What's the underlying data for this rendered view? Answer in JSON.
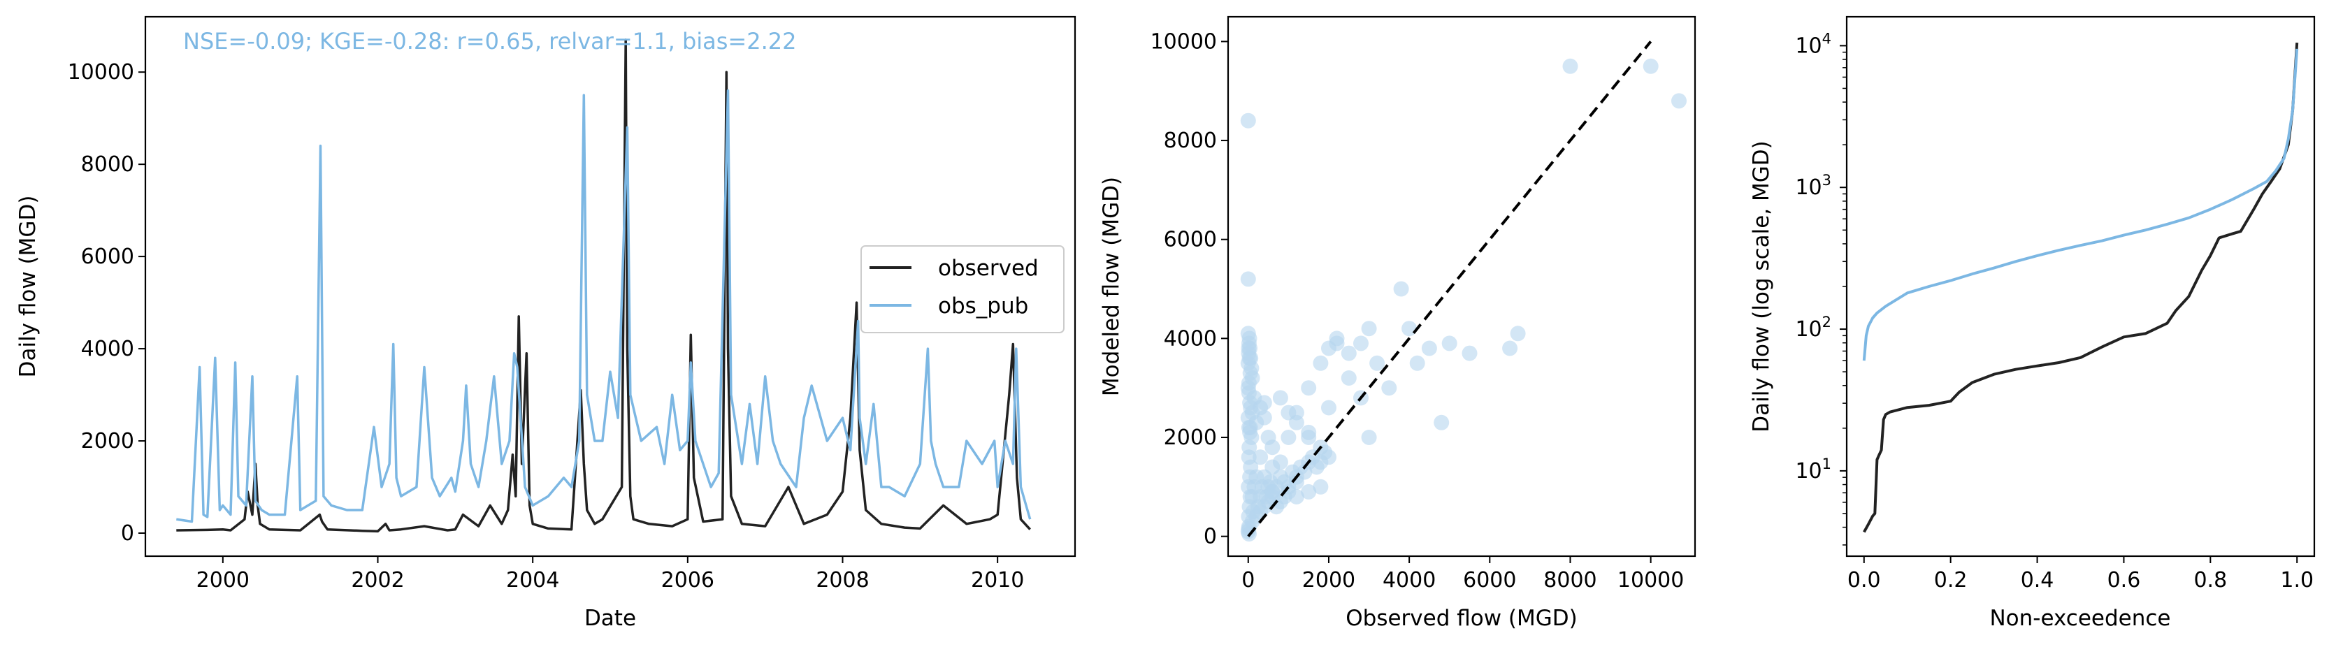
{
  "colors": {
    "observed": "#222222",
    "obs_pub": "#7cb7e3",
    "scatter": "#b6d6ef",
    "diagonal": "#000000",
    "metrics": "#7cb7e3"
  },
  "chart_data": [
    {
      "id": "timeseries",
      "type": "line",
      "annotation": "NSE=-0.09; KGE=-0.28: r=0.65, relvar=1.1, bias=2.22",
      "xlabel": "Date",
      "ylabel": "Daily flow (MGD)",
      "xlim": [
        1999.0,
        2011.0
      ],
      "ylim": [
        -500,
        11200
      ],
      "x_ticks": [
        2000,
        2002,
        2004,
        2006,
        2008,
        2010
      ],
      "y_ticks": [
        0,
        2000,
        4000,
        6000,
        8000,
        10000
      ],
      "legend": {
        "position": "center-right",
        "entries": [
          "observed",
          "obs_pub"
        ]
      },
      "series": [
        {
          "name": "observed",
          "x": [
            1999.4,
            1999.8,
            2000.0,
            2000.1,
            2000.28,
            2000.32,
            2000.38,
            2000.42,
            2000.45,
            2000.48,
            2000.6,
            2001.0,
            2001.25,
            2001.28,
            2001.35,
            2001.8,
            2002.0,
            2002.1,
            2002.15,
            2002.3,
            2002.6,
            2002.9,
            2003.0,
            2003.1,
            2003.3,
            2003.45,
            2003.6,
            2003.68,
            2003.74,
            2003.78,
            2003.82,
            2003.86,
            2003.92,
            2003.96,
            2004.0,
            2004.2,
            2004.5,
            2004.62,
            2004.66,
            2004.7,
            2004.8,
            2004.9,
            2005.15,
            2005.2,
            2005.22,
            2005.26,
            2005.3,
            2005.5,
            2005.8,
            2006.0,
            2006.04,
            2006.08,
            2006.2,
            2006.45,
            2006.5,
            2006.52,
            2006.56,
            2006.7,
            2007.0,
            2007.3,
            2007.5,
            2007.8,
            2008.0,
            2008.1,
            2008.18,
            2008.22,
            2008.3,
            2008.5,
            2008.8,
            2009.0,
            2009.3,
            2009.6,
            2009.9,
            2010.0,
            2010.15,
            2010.2,
            2010.25,
            2010.3,
            2010.42
          ],
          "values": [
            60,
            70,
            80,
            60,
            300,
            900,
            400,
            1500,
            600,
            200,
            80,
            60,
            400,
            250,
            80,
            50,
            40,
            200,
            60,
            80,
            150,
            60,
            80,
            400,
            150,
            600,
            200,
            500,
            1700,
            800,
            4700,
            1500,
            3900,
            600,
            200,
            100,
            80,
            3100,
            1500,
            500,
            200,
            300,
            1000,
            10700,
            4000,
            800,
            300,
            200,
            150,
            300,
            4300,
            1200,
            250,
            300,
            10000,
            4000,
            800,
            200,
            150,
            1000,
            200,
            400,
            900,
            2500,
            5000,
            1800,
            500,
            200,
            120,
            100,
            600,
            200,
            300,
            400,
            3000,
            4100,
            1200,
            300,
            80
          ]
        },
        {
          "name": "obs_pub",
          "x": [
            1999.4,
            1999.6,
            1999.7,
            1999.75,
            1999.8,
            1999.9,
            1999.96,
            2000.0,
            2000.1,
            2000.16,
            2000.2,
            2000.3,
            2000.38,
            2000.42,
            2000.5,
            2000.6,
            2000.8,
            2000.96,
            2001.0,
            2001.1,
            2001.2,
            2001.26,
            2001.3,
            2001.4,
            2001.6,
            2001.8,
            2001.95,
            2002.05,
            2002.15,
            2002.2,
            2002.24,
            2002.3,
            2002.5,
            2002.6,
            2002.7,
            2002.8,
            2002.95,
            2003.0,
            2003.1,
            2003.14,
            2003.2,
            2003.3,
            2003.4,
            2003.5,
            2003.6,
            2003.7,
            2003.76,
            2003.8,
            2003.9,
            2004.0,
            2004.2,
            2004.4,
            2004.5,
            2004.6,
            2004.66,
            2004.7,
            2004.8,
            2004.9,
            2005.0,
            2005.1,
            2005.22,
            2005.26,
            2005.4,
            2005.6,
            2005.7,
            2005.8,
            2005.9,
            2006.0,
            2006.04,
            2006.1,
            2006.2,
            2006.3,
            2006.4,
            2006.52,
            2006.56,
            2006.7,
            2006.8,
            2006.9,
            2007.0,
            2007.1,
            2007.2,
            2007.4,
            2007.5,
            2007.6,
            2007.8,
            2008.0,
            2008.1,
            2008.2,
            2008.22,
            2008.3,
            2008.4,
            2008.5,
            2008.6,
            2008.8,
            2009.0,
            2009.1,
            2009.14,
            2009.2,
            2009.3,
            2009.5,
            2009.6,
            2009.8,
            2009.96,
            2010.0,
            2010.1,
            2010.2,
            2010.24,
            2010.3,
            2010.42
          ],
          "values": [
            300,
            250,
            3600,
            400,
            350,
            3800,
            500,
            600,
            400,
            3700,
            800,
            600,
            3400,
            700,
            500,
            400,
            400,
            3400,
            500,
            600,
            700,
            8400,
            800,
            600,
            500,
            500,
            2300,
            1000,
            1500,
            4100,
            1200,
            800,
            1000,
            3600,
            1200,
            800,
            1200,
            900,
            2000,
            3200,
            1500,
            1000,
            2000,
            3400,
            1500,
            2000,
            3900,
            3600,
            1000,
            600,
            800,
            1200,
            1000,
            2000,
            9500,
            3000,
            2000,
            2000,
            3500,
            2500,
            8800,
            3000,
            2000,
            2300,
            1500,
            3000,
            1800,
            2000,
            3700,
            2000,
            1500,
            1000,
            1300,
            9600,
            3000,
            1500,
            2800,
            1500,
            3400,
            2000,
            1500,
            1000,
            2500,
            3200,
            2000,
            2500,
            1800,
            4600,
            2500,
            1500,
            2800,
            1000,
            1000,
            800,
            1500,
            4000,
            2000,
            1500,
            1000,
            1000,
            2000,
            1500,
            2000,
            1000,
            2000,
            1500,
            4000,
            1000,
            300
          ]
        }
      ]
    },
    {
      "id": "scatter",
      "type": "scatter",
      "xlabel": "Observed flow (MGD)",
      "ylabel": "Modeled flow (MGD)",
      "xlim": [
        -500,
        11100
      ],
      "ylim": [
        -400,
        10500
      ],
      "x_ticks": [
        0,
        2000,
        4000,
        6000,
        8000,
        10000
      ],
      "y_ticks": [
        0,
        2000,
        4000,
        6000,
        8000,
        10000
      ],
      "one_to_one_line": [
        [
          0,
          0
        ],
        [
          10000,
          10000
        ]
      ],
      "x": [
        0,
        20,
        10,
        30,
        50,
        5,
        40,
        60,
        15,
        25,
        80,
        100,
        120,
        150,
        200,
        250,
        300,
        350,
        400,
        450,
        500,
        550,
        600,
        700,
        800,
        900,
        1000,
        1100,
        1200,
        1300,
        1400,
        1500,
        1600,
        1700,
        1800,
        1900,
        2000,
        100,
        200,
        300,
        400,
        500,
        600,
        700,
        800,
        900,
        1000,
        1200,
        1500,
        1800,
        50,
        100,
        150,
        200,
        300,
        400,
        500,
        0,
        10,
        20,
        30,
        40,
        60,
        80,
        100,
        0,
        20,
        40,
        60,
        0,
        20,
        40,
        0,
        10,
        30,
        50,
        0,
        20,
        0,
        20,
        10,
        300,
        600,
        800,
        1000,
        1200,
        1500,
        1800,
        2000,
        2200,
        2500,
        2800,
        3000,
        3200,
        3500,
        4000,
        4200,
        4500,
        4800,
        5000,
        5500,
        6500,
        6700,
        3800,
        3000,
        2800,
        2500,
        2200,
        2000,
        1500,
        1200,
        1000,
        800,
        600,
        400,
        8000,
        10000,
        10700,
        1500,
        1800,
        600,
        1200
      ],
      "y": [
        100,
        200,
        400,
        600,
        800,
        1000,
        1200,
        1400,
        1600,
        1800,
        2000,
        800,
        500,
        1000,
        1200,
        600,
        800,
        1000,
        1200,
        800,
        1000,
        1100,
        900,
        1000,
        1200,
        1100,
        1000,
        1300,
        1200,
        1400,
        1300,
        1500,
        1600,
        1400,
        1500,
        1700,
        1600,
        300,
        400,
        500,
        600,
        700,
        800,
        600,
        700,
        800,
        900,
        800,
        900,
        1000,
        2200,
        2500,
        2800,
        2300,
        2600,
        2400,
        2000,
        3500,
        3700,
        3900,
        4000,
        3800,
        3600,
        3400,
        3200,
        3000,
        2900,
        2700,
        2600,
        2400,
        2200,
        2100,
        4100,
        3800,
        3600,
        3300,
        5200,
        3100,
        8400,
        50,
        150,
        1600,
        1800,
        1500,
        2000,
        2500,
        3000,
        3500,
        3800,
        4000,
        3700,
        3900,
        4200,
        3500,
        3000,
        4200,
        3500,
        3800,
        2300,
        3900,
        3700,
        3800,
        4100,
        5000,
        2000,
        2800,
        3200,
        3900,
        2600,
        2100,
        2300,
        2500,
        2800,
        1400,
        2700,
        9500,
        9500,
        8800,
        2000,
        1800,
        900,
        1100
      ]
    },
    {
      "id": "fdc",
      "type": "line",
      "xlabel": "Non-exceedence",
      "ylabel": "Daily flow (log scale, MGD)",
      "yscale": "log",
      "xlim": [
        -0.04,
        1.04
      ],
      "ylim": [
        2.5,
        16000
      ],
      "x_ticks": [
        "0.0",
        "0.2",
        "0.4",
        "0.6",
        "0.8",
        "1.0"
      ],
      "y_tick_values": [
        10,
        100,
        1000,
        10000
      ],
      "y_tick_labels": [
        [
          "10",
          "1"
        ],
        [
          "10",
          "2"
        ],
        [
          "10",
          "3"
        ],
        [
          "10",
          "4"
        ]
      ],
      "series": [
        {
          "name": "observed",
          "x": [
            0.0,
            0.01,
            0.02,
            0.025,
            0.03,
            0.035,
            0.04,
            0.045,
            0.05,
            0.06,
            0.08,
            0.1,
            0.15,
            0.2,
            0.22,
            0.25,
            0.3,
            0.35,
            0.4,
            0.45,
            0.5,
            0.55,
            0.6,
            0.65,
            0.7,
            0.72,
            0.75,
            0.78,
            0.8,
            0.82,
            0.85,
            0.87,
            0.9,
            0.92,
            0.94,
            0.96,
            0.98,
            0.99,
            1.0
          ],
          "values": [
            3.7,
            4.2,
            4.8,
            5.0,
            12,
            13,
            14,
            23,
            25,
            26,
            27,
            28,
            29,
            31,
            36,
            42,
            48,
            52,
            55,
            58,
            63,
            75,
            88,
            93,
            110,
            135,
            170,
            260,
            330,
            440,
            470,
            490,
            700,
            900,
            1100,
            1350,
            2000,
            3500,
            10500
          ]
        },
        {
          "name": "obs_pub",
          "x": [
            0.0,
            0.005,
            0.01,
            0.02,
            0.03,
            0.05,
            0.08,
            0.1,
            0.15,
            0.2,
            0.25,
            0.3,
            0.35,
            0.4,
            0.45,
            0.5,
            0.55,
            0.6,
            0.65,
            0.7,
            0.75,
            0.8,
            0.85,
            0.9,
            0.93,
            0.95,
            0.97,
            0.98,
            0.99,
            1.0
          ],
          "values": [
            60,
            90,
            105,
            120,
            130,
            145,
            165,
            180,
            200,
            220,
            245,
            270,
            300,
            330,
            360,
            390,
            420,
            460,
            500,
            550,
            610,
            700,
            820,
            980,
            1100,
            1300,
            1600,
            2200,
            3500,
            9500
          ]
        }
      ]
    }
  ]
}
